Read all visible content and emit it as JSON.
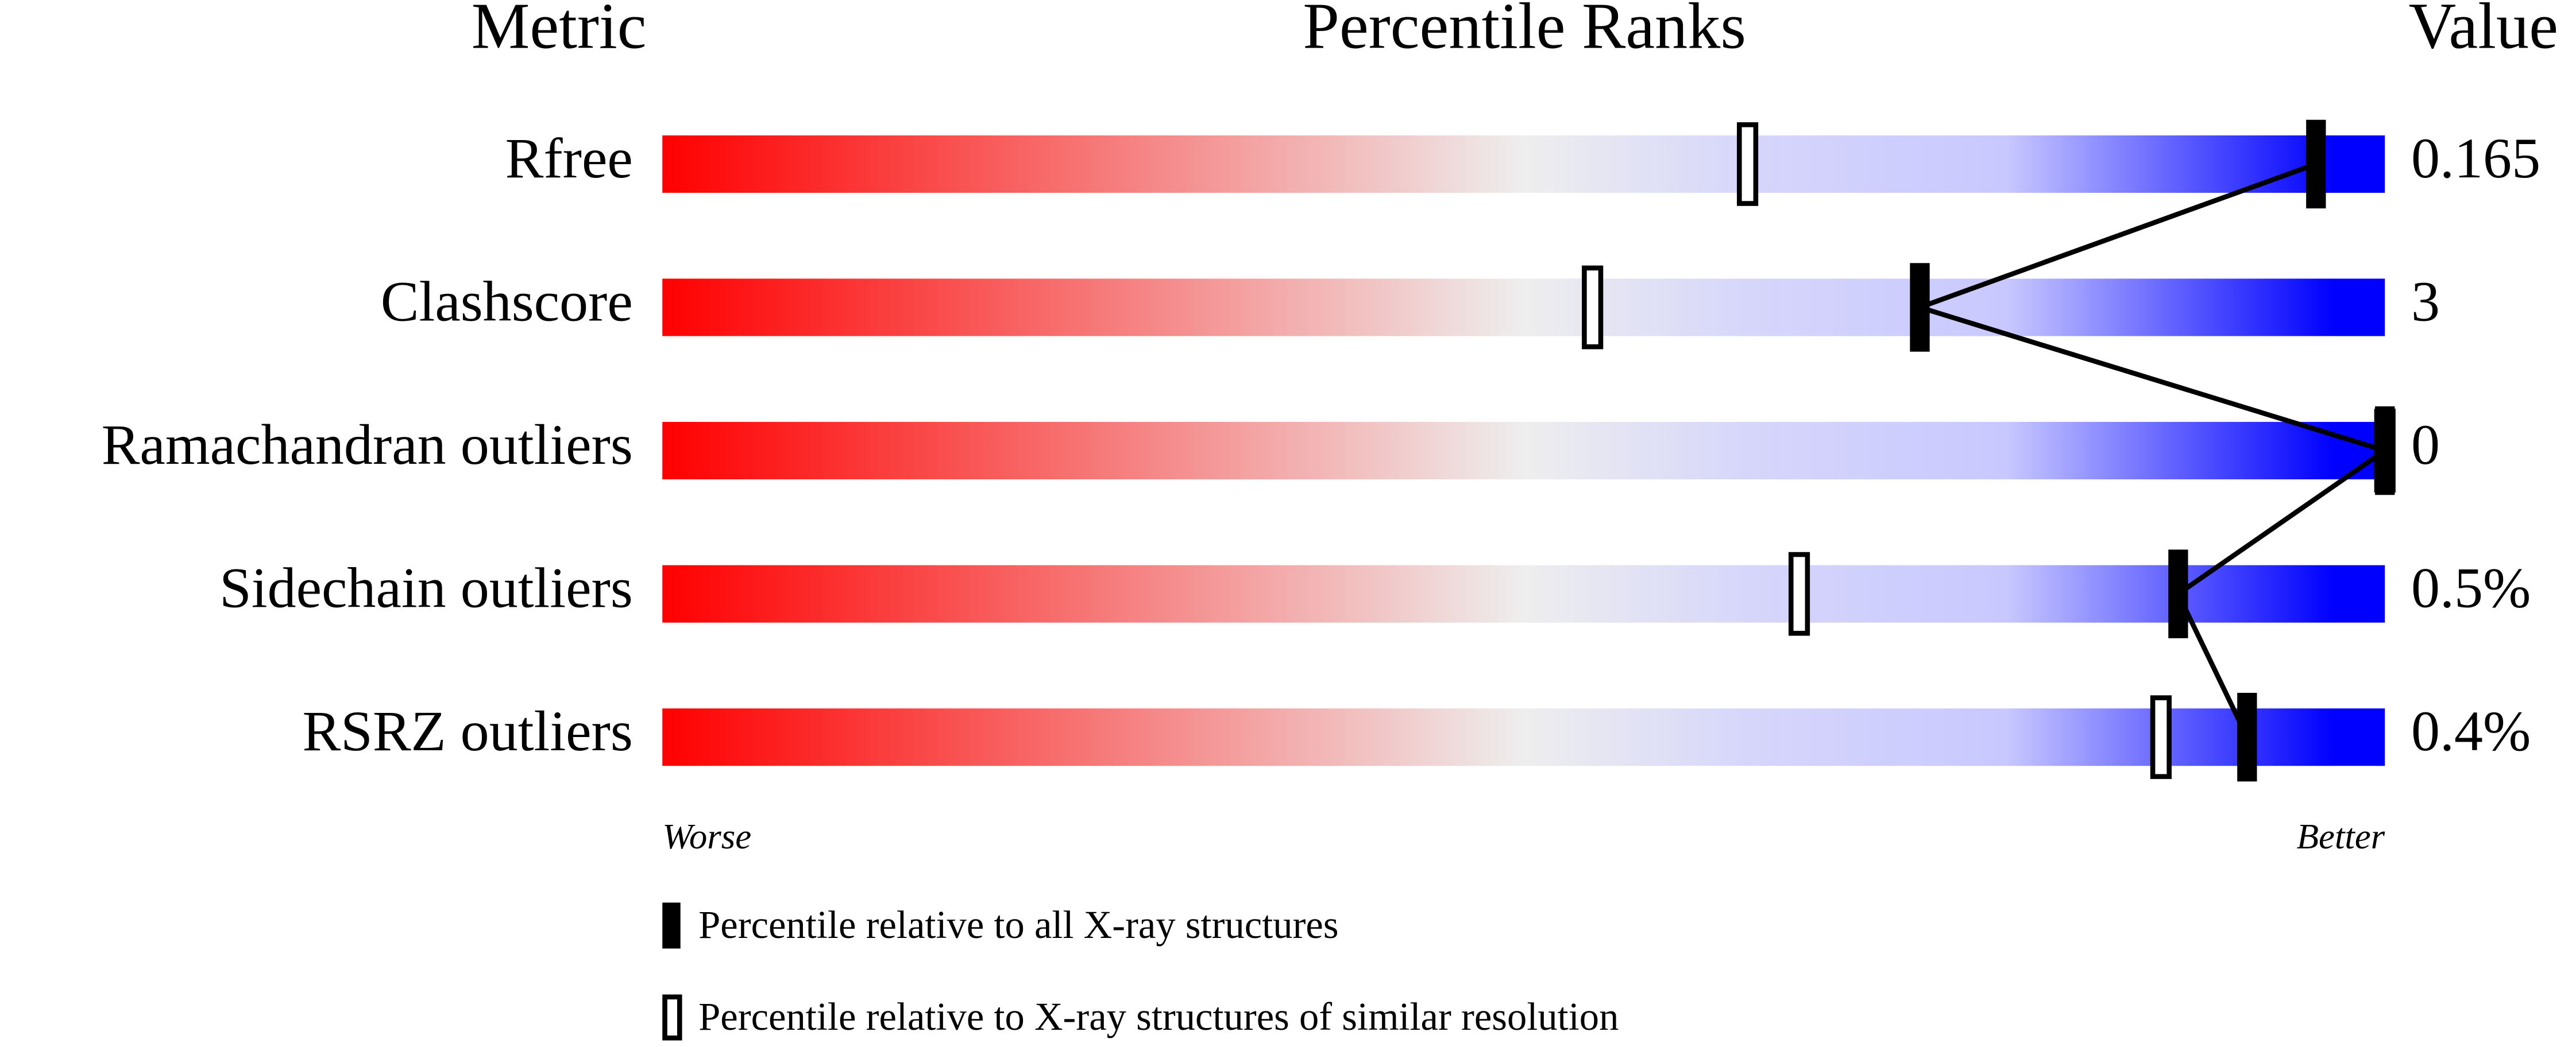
{
  "chart_data": {
    "type": "percentile-slider",
    "headers": [
      "Metric",
      "Percentile Ranks",
      "Value"
    ],
    "categories": [
      "Rfree",
      "Clashscore",
      "Ramachandran outliers",
      "Sidechain outliers",
      "RSRZ outliers"
    ],
    "metric_values": [
      "0.165",
      "3",
      "0",
      "0.5%",
      "0.4%"
    ],
    "series": [
      {
        "name": "Percentile relative to all X-ray structures",
        "color": "#000000",
        "values": [
          96,
          73,
          100,
          88,
          92
        ]
      },
      {
        "name": "Percentile relative to X-ray structures of similar resolution",
        "color": "#ffffff",
        "values": [
          63,
          54,
          100,
          66,
          87
        ]
      }
    ],
    "xlim": [
      0,
      100
    ],
    "worse_label": "Worse",
    "better_label": "Better"
  }
}
